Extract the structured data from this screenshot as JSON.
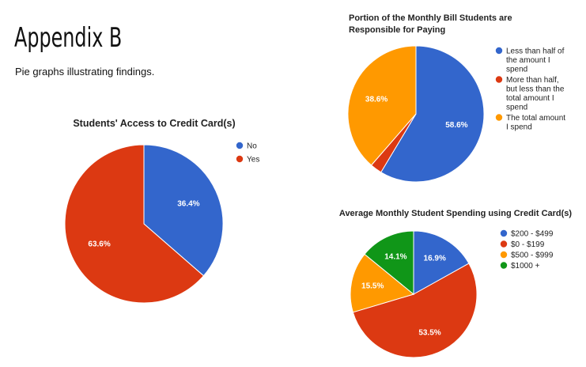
{
  "page": {
    "title": "Appendix B",
    "subtitle": "Pie graphs illustrating findings."
  },
  "chart_data": [
    {
      "type": "pie",
      "title": "Students' Access to Credit Card(s)",
      "slices": [
        {
          "label": "No",
          "value": 36.4,
          "display": "36.4%",
          "color": "#3366cc"
        },
        {
          "label": "Yes",
          "value": 63.6,
          "display": "63.6%",
          "color": "#dc3912"
        }
      ],
      "legend_position": "right"
    },
    {
      "type": "pie",
      "title": "Portion of the Monthly Bill Students are Responsible for Paying",
      "title_lines": [
        "Portion of the Monthly Bill Students are",
        "Responsible for Paying"
      ],
      "slices": [
        {
          "label": "Less than half of the amount I spend",
          "label_lines": [
            "Less than half of",
            "the amount I",
            "spend"
          ],
          "value": 58.6,
          "display": "58.6%",
          "color": "#3366cc"
        },
        {
          "label": "More than half, but less than the total amount I spend",
          "label_lines": [
            "More than half,",
            "but less than the",
            "total amount I",
            "spend"
          ],
          "value": 2.8,
          "display": "",
          "color": "#dc3912"
        },
        {
          "label": "The total amount I spend",
          "label_lines": [
            "The total amount",
            "I spend"
          ],
          "value": 38.6,
          "display": "38.6%",
          "color": "#ff9900"
        }
      ],
      "legend_position": "right"
    },
    {
      "type": "pie",
      "title": "Average Monthly Student Spending using Credit Card(s)",
      "slices": [
        {
          "label": "$200 - $499",
          "value": 16.9,
          "display": "16.9%",
          "color": "#3366cc"
        },
        {
          "label": "$0 - $199",
          "value": 53.5,
          "display": "53.5%",
          "color": "#dc3912"
        },
        {
          "label": "$500 - $999",
          "value": 15.5,
          "display": "15.5%",
          "color": "#ff9900"
        },
        {
          "label": "$1000 +",
          "value": 14.1,
          "display": "14.1%",
          "color": "#109618"
        }
      ],
      "legend_position": "right"
    }
  ]
}
